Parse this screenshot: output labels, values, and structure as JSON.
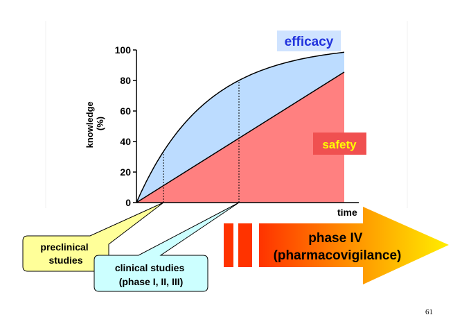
{
  "chart_data": {
    "type": "area",
    "ylabel_line1": "knowledge",
    "ylabel_line2": "(%)",
    "xlabel": "time",
    "ylim": [
      0,
      100
    ],
    "yticks": [
      "0",
      "20",
      "40",
      "60",
      "80",
      "100"
    ],
    "series": [
      {
        "name": "efficacy",
        "color": "#bcdcff",
        "label_bg": "#cfe3ff",
        "label_color": "#2233dd"
      },
      {
        "name": "safety",
        "color": "#ff8080",
        "label_bg": "#f05050",
        "label_color": "#ffff00"
      }
    ]
  },
  "callouts": {
    "preclinical": {
      "line1": "preclinical",
      "line2": "studies",
      "bg": "#ffff99"
    },
    "clinical": {
      "line1": "clinical studies",
      "line2": "(phase I, II, III)",
      "bg": "#ccffff"
    }
  },
  "phase4": {
    "line1": "phase IV",
    "line2": "(pharmacovigilance)"
  },
  "page_number": "61"
}
